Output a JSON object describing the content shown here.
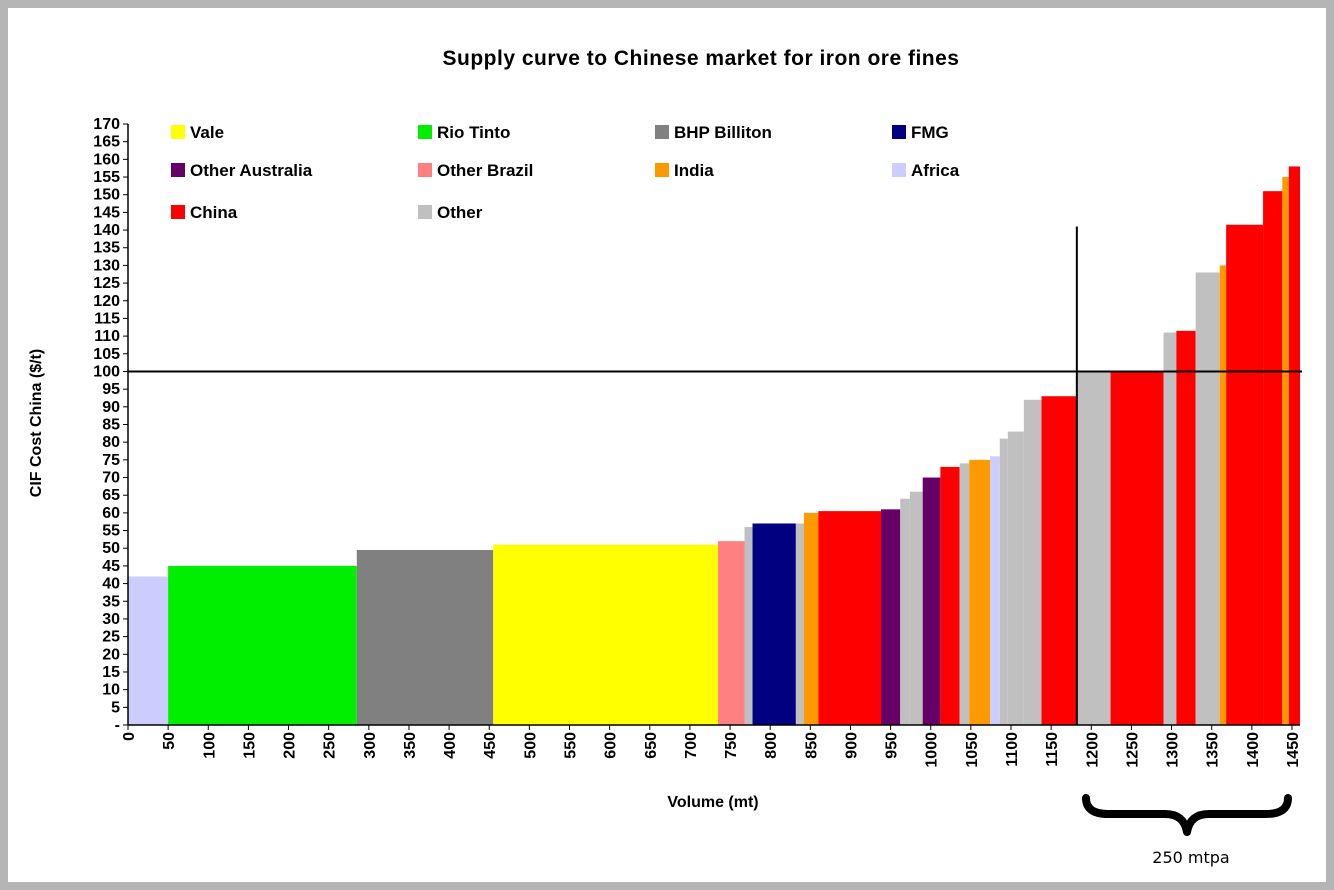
{
  "chart_data": {
    "type": "bar",
    "title": "Supply curve to Chinese market for iron ore fines",
    "xlabel": "Volume (mt)",
    "ylabel": "CIF Cost China ($/t)",
    "xlim": [
      0,
      1460
    ],
    "ylim": [
      0,
      170
    ],
    "x_ticks": [
      0,
      50,
      100,
      150,
      200,
      250,
      300,
      350,
      400,
      450,
      500,
      550,
      600,
      650,
      700,
      750,
      800,
      850,
      900,
      950,
      1000,
      1050,
      1100,
      1150,
      1200,
      1250,
      1300,
      1350,
      1400,
      1450
    ],
    "y_ticks": [
      0,
      5,
      10,
      15,
      20,
      25,
      30,
      35,
      40,
      45,
      50,
      55,
      60,
      65,
      70,
      75,
      80,
      85,
      90,
      95,
      100,
      105,
      110,
      115,
      120,
      125,
      130,
      135,
      140,
      145,
      150,
      155,
      160,
      165,
      170
    ],
    "y_zero_label": "-",
    "legend_position": "top",
    "series": [
      {
        "name": "Vale",
        "color": "#ffff00"
      },
      {
        "name": "Rio Tinto",
        "color": "#00ee00"
      },
      {
        "name": "BHP Billiton",
        "color": "#808080"
      },
      {
        "name": "FMG",
        "color": "#000080"
      },
      {
        "name": "Other Australia",
        "color": "#660066"
      },
      {
        "name": "Other Brazil",
        "color": "#ff8080"
      },
      {
        "name": "India",
        "color": "#ff9900"
      },
      {
        "name": "Africa",
        "color": "#ccccff"
      },
      {
        "name": "China",
        "color": "#ff0000"
      },
      {
        "name": "Other",
        "color": "#c0c0c0"
      }
    ],
    "bars": [
      {
        "x0": 0,
        "x1": 50,
        "value": 42,
        "series": "Africa"
      },
      {
        "x0": 50,
        "x1": 285,
        "value": 45,
        "series": "Rio Tinto"
      },
      {
        "x0": 285,
        "x1": 455,
        "value": 49.5,
        "series": "BHP Billiton"
      },
      {
        "x0": 455,
        "x1": 735,
        "value": 51,
        "series": "Vale"
      },
      {
        "x0": 735,
        "x1": 768,
        "value": 52,
        "series": "Other Brazil"
      },
      {
        "x0": 768,
        "x1": 778,
        "value": 56,
        "series": "Other"
      },
      {
        "x0": 778,
        "x1": 832,
        "value": 57,
        "series": "FMG"
      },
      {
        "x0": 832,
        "x1": 842,
        "value": 57,
        "series": "Other"
      },
      {
        "x0": 842,
        "x1": 860,
        "value": 60,
        "series": "India"
      },
      {
        "x0": 860,
        "x1": 938,
        "value": 60.5,
        "series": "China"
      },
      {
        "x0": 938,
        "x1": 962,
        "value": 61,
        "series": "Other Australia"
      },
      {
        "x0": 962,
        "x1": 974,
        "value": 64,
        "series": "Other"
      },
      {
        "x0": 974,
        "x1": 990,
        "value": 66,
        "series": "Other"
      },
      {
        "x0": 990,
        "x1": 1012,
        "value": 70,
        "series": "Other Australia"
      },
      {
        "x0": 1012,
        "x1": 1036,
        "value": 73,
        "series": "China"
      },
      {
        "x0": 1036,
        "x1": 1048,
        "value": 74,
        "series": "Other"
      },
      {
        "x0": 1048,
        "x1": 1074,
        "value": 75,
        "series": "India"
      },
      {
        "x0": 1074,
        "x1": 1086,
        "value": 76,
        "series": "Africa"
      },
      {
        "x0": 1086,
        "x1": 1096,
        "value": 81,
        "series": "Other"
      },
      {
        "x0": 1096,
        "x1": 1116,
        "value": 83,
        "series": "Other"
      },
      {
        "x0": 1116,
        "x1": 1138,
        "value": 92,
        "series": "Other"
      },
      {
        "x0": 1138,
        "x1": 1182,
        "value": 93,
        "series": "China"
      },
      {
        "x0": 1182,
        "x1": 1224,
        "value": 100,
        "series": "Other"
      },
      {
        "x0": 1224,
        "x1": 1290,
        "value": 100,
        "series": "China"
      },
      {
        "x0": 1290,
        "x1": 1306,
        "value": 111,
        "series": "Other"
      },
      {
        "x0": 1306,
        "x1": 1330,
        "value": 111.5,
        "series": "China"
      },
      {
        "x0": 1330,
        "x1": 1360,
        "value": 128,
        "series": "Other"
      },
      {
        "x0": 1360,
        "x1": 1368,
        "value": 130,
        "series": "India"
      },
      {
        "x0": 1368,
        "x1": 1414,
        "value": 141.5,
        "series": "China"
      },
      {
        "x0": 1414,
        "x1": 1438,
        "value": 151,
        "series": "China"
      },
      {
        "x0": 1438,
        "x1": 1446,
        "value": 155,
        "series": "India"
      },
      {
        "x0": 1446,
        "x1": 1460,
        "value": 158,
        "series": "China"
      }
    ],
    "reference_lines": [
      {
        "orientation": "horizontal",
        "value": 100
      },
      {
        "orientation": "vertical",
        "value": 1182,
        "y_top": 141
      }
    ],
    "annotation": {
      "text": "250 mtpa",
      "x_from": 1195,
      "x_to": 1445
    }
  }
}
